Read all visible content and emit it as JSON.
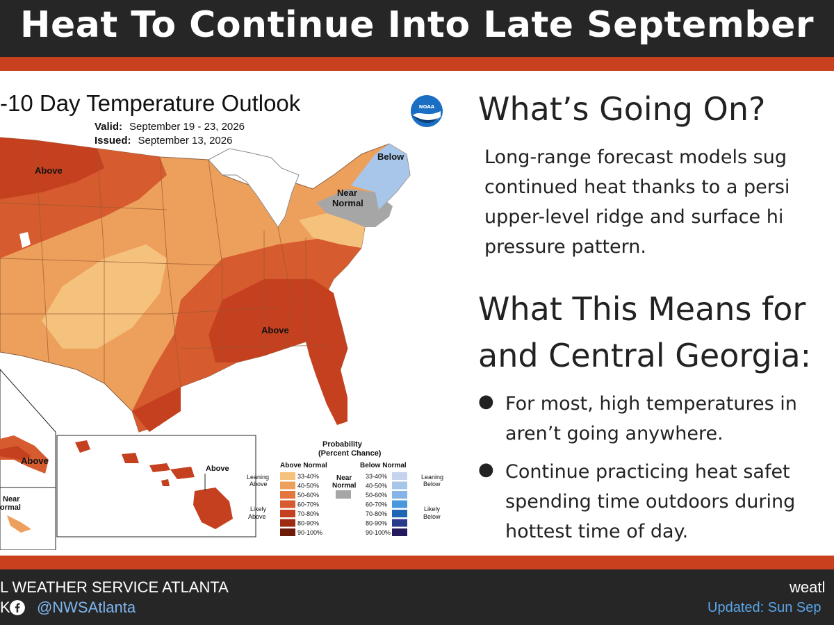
{
  "header": {
    "title": "Heat To Continue Into Late September"
  },
  "map": {
    "title": "-10 Day Temperature Outlook",
    "valid_label": "Valid:",
    "valid_value": "September 19 - 23, 2026",
    "issued_label": "Issued:",
    "issued_value": "September 13, 2026",
    "logo_text": "NOAA",
    "labels": {
      "above_nw": "Above",
      "above_se": "Above",
      "below_ne": "Below",
      "near_ne_1": "Near",
      "near_ne_2": "Normal",
      "above_ak": "Above",
      "above_hi": "Above",
      "near_ak_1": "Near",
      "near_ak_2": "ormal"
    },
    "colors": {
      "above_33_40": "#f5c27e",
      "above_40_50": "#eda05c",
      "above_50_60": "#e3763f",
      "above_60_70": "#d65b2f",
      "above_70_80": "#c5401f",
      "above_80_90": "#9e2a12",
      "above_90_100": "#6e1a08",
      "near_normal": "#a6a6a6",
      "below_33_40": "#c5d3ee",
      "below_40_50": "#a8c6ea"
    }
  },
  "legend": {
    "title": "Probability",
    "subtitle": "(Percent Chance)",
    "above_header": "Above Normal",
    "below_header": "Below Normal",
    "near_label_1": "Near",
    "near_label_2": "Normal",
    "leaning_above_1": "Leaning",
    "leaning_above_2": "Above",
    "likely_above_1": "Likely",
    "likely_above_2": "Above",
    "leaning_below_1": "Leaning",
    "leaning_below_2": "Below",
    "likely_below_1": "Likely",
    "likely_below_2": "Below",
    "ranges": [
      "33-40%",
      "40-50%",
      "50-60%",
      "60-70%",
      "70-80%",
      "80-90%",
      "90-100%"
    ],
    "above_colors": [
      "#f5c27e",
      "#eda05c",
      "#e3763f",
      "#d65b2f",
      "#c5401f",
      "#9e2a12",
      "#6e1a08"
    ],
    "below_colors": [
      "#c5d3ee",
      "#a8c6ea",
      "#86b4e6",
      "#4a98dc",
      "#1e66b4",
      "#283a8a",
      "#221a5c"
    ]
  },
  "right": {
    "heading1": "What’s Going On?",
    "p1_line1": "Long-range forecast models sug",
    "p1_line2": "continued heat thanks to a persi",
    "p1_line3": "upper-level ridge and surface hi",
    "p1_line4": "pressure pattern.",
    "heading2_line1": "What This Means for",
    "heading2_line2": "and Central Georgia:",
    "bullet1_line1": "For most, high temperatures in",
    "bullet1_line2": "aren’t going anywhere.",
    "bullet2_line1": "Continue practicing heat safet",
    "bullet2_line2": "spending time outdoors during",
    "bullet2_line3": "hottest time of day.",
    "bullet_char": "●"
  },
  "footer": {
    "org": "L WEATHER SERVICE ATLANTA",
    "social_prefix": "K",
    "handle": "@NWSAtlanta",
    "site": "weatl",
    "updated": "Updated: Sun Sep"
  }
}
